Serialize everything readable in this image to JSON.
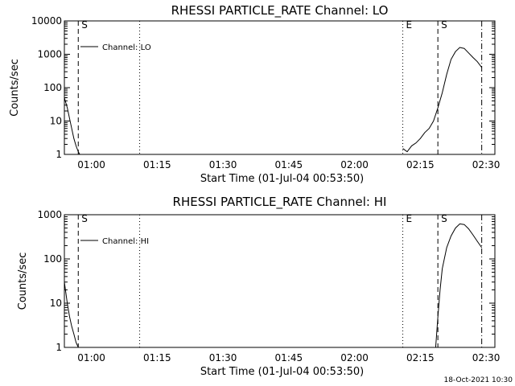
{
  "chart_data": [
    {
      "type": "line",
      "title": "RHESSI PARTICLE_RATE Channel: LO",
      "xlabel": "Start Time (01-Jul-04 00:53:50)",
      "ylabel": "Counts/sec",
      "y_scale": "log",
      "ylim": [
        1,
        10000
      ],
      "y_ticks": [
        1,
        10,
        100,
        1000,
        10000
      ],
      "y_tick_labels": [
        "1",
        "10",
        "100",
        "1000",
        "10000"
      ],
      "x_ticks": [
        "01:00",
        "01:15",
        "01:30",
        "01:45",
        "02:00",
        "02:15",
        "02:30"
      ],
      "legend": "Channel: LO",
      "markers": [
        {
          "label": "S",
          "time": "00:57",
          "style": "dashed"
        },
        {
          "label": "",
          "time": "01:11",
          "style": "dotted"
        },
        {
          "label": "E",
          "time": "02:11",
          "style": "dotted"
        },
        {
          "label": "S",
          "time": "02:19",
          "style": "dashed"
        },
        {
          "label": "",
          "time": "02:29",
          "style": "dashdot"
        }
      ],
      "series": [
        {
          "x": [
            "00:53:50",
            "00:54:30",
            "00:55:00",
            "00:55:30",
            "00:56:00",
            "00:56:30",
            "00:57:00",
            "00:57:20",
            "02:11:00",
            "02:12:00",
            "02:13:00",
            "02:14:00",
            "02:15:00",
            "02:16:00",
            "02:17:00",
            "02:18:00",
            "02:19:00",
            "02:20:00",
            "02:21:00",
            "02:22:00",
            "02:23:00",
            "02:24:00",
            "02:25:00",
            "02:26:00",
            "02:27:00",
            "02:28:00",
            "02:29:00"
          ],
          "values": [
            50,
            25,
            12,
            6,
            3,
            1.8,
            1.2,
            1,
            1.5,
            1.2,
            1.8,
            2.2,
            3,
            4.5,
            6,
            10,
            25,
            70,
            250,
            700,
            1200,
            1600,
            1500,
            1100,
            800,
            600,
            400
          ]
        }
      ]
    },
    {
      "type": "line",
      "title": "RHESSI PARTICLE_RATE Channel: HI",
      "xlabel": "Start Time (01-Jul-04 00:53:50)",
      "ylabel": "Counts/sec",
      "y_scale": "log",
      "ylim": [
        1,
        1000
      ],
      "y_ticks": [
        1,
        10,
        100,
        1000
      ],
      "y_tick_labels": [
        "1",
        "10",
        "100",
        "1000"
      ],
      "x_ticks": [
        "01:00",
        "01:15",
        "01:30",
        "01:45",
        "02:00",
        "02:15",
        "02:30"
      ],
      "legend": "Channel: HI",
      "markers": [
        {
          "label": "S",
          "time": "00:57",
          "style": "dashed"
        },
        {
          "label": "",
          "time": "01:11",
          "style": "dotted"
        },
        {
          "label": "E",
          "time": "02:11",
          "style": "dotted"
        },
        {
          "label": "S",
          "time": "02:19",
          "style": "dashed"
        },
        {
          "label": "",
          "time": "02:29",
          "style": "dashdot"
        }
      ],
      "series": [
        {
          "x": [
            "00:53:50",
            "00:54:30",
            "00:55:00",
            "00:55:30",
            "00:56:00",
            "00:56:30",
            "00:57:00",
            "02:18:30",
            "02:19:00",
            "02:19:30",
            "02:20:00",
            "02:21:00",
            "02:22:00",
            "02:23:00",
            "02:24:00",
            "02:25:00",
            "02:26:00",
            "02:27:00",
            "02:28:00",
            "02:29:00"
          ],
          "values": [
            30,
            10,
            5,
            3,
            2,
            1.3,
            1,
            1,
            5,
            20,
            60,
            180,
            330,
            500,
            620,
            600,
            480,
            350,
            250,
            180
          ]
        }
      ]
    }
  ],
  "footer": {
    "timestamp": "18-Oct-2021 10:30"
  }
}
